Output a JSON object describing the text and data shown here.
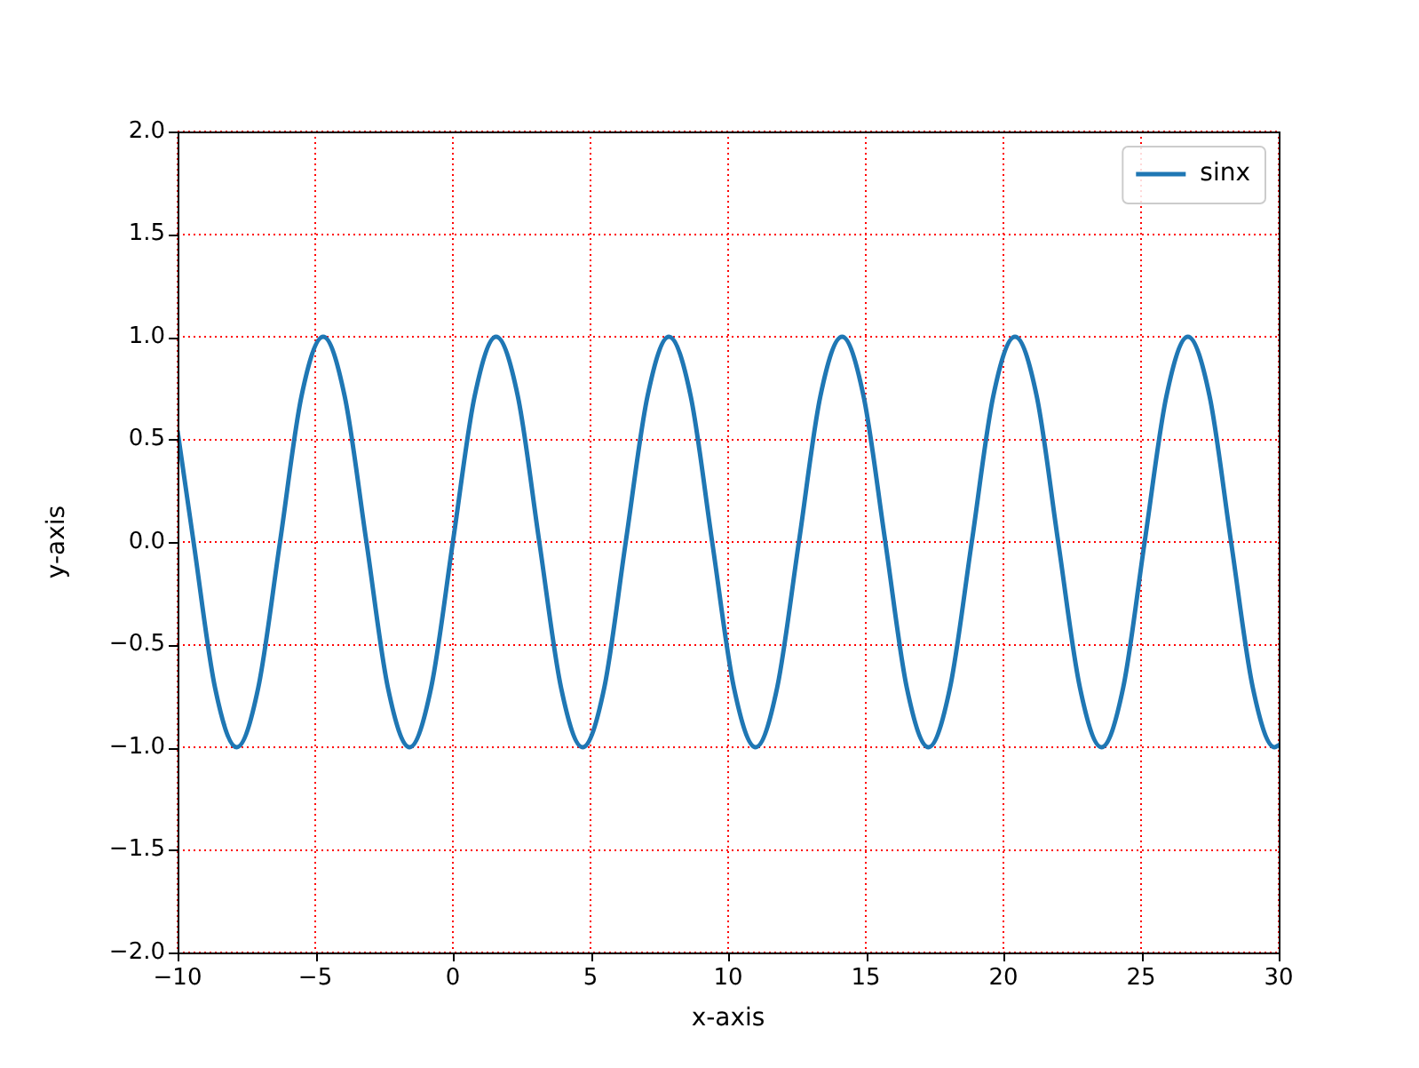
{
  "chart_data": {
    "type": "line",
    "xlabel": "x-axis",
    "ylabel": "y-axis",
    "series": [
      {
        "name": "sinx",
        "color": "#1f77b4",
        "x": [
          -10,
          -9.42,
          -8.64,
          -7.85,
          -7.07,
          -6.28,
          -5.5,
          -4.71,
          -3.93,
          -3.14,
          -2.36,
          -1.57,
          -0.79,
          0,
          0.79,
          1.57,
          2.36,
          3.14,
          3.93,
          4.71,
          5.5,
          6.28,
          7.07,
          7.85,
          8.64,
          9.42,
          10.21,
          11,
          11.78,
          12.57,
          13.35,
          14.14,
          14.92,
          15.71,
          16.49,
          17.28,
          18.06,
          18.85,
          19.63,
          20.42,
          21.21,
          21.99,
          22.78,
          23.56,
          24.35,
          25.13,
          25.92,
          26.7,
          27.49,
          28.27,
          29.06,
          29.85,
          30
        ],
        "values": [
          0.54,
          0,
          -0.71,
          -1,
          -0.71,
          0,
          0.71,
          1,
          0.71,
          0,
          -0.71,
          -1,
          -0.71,
          0,
          0.71,
          1,
          0.71,
          0,
          -0.71,
          -1,
          -0.71,
          0,
          0.71,
          1,
          0.71,
          0,
          -0.71,
          -1,
          -0.71,
          0,
          0.71,
          1,
          0.71,
          0,
          -0.71,
          -1,
          -0.71,
          0,
          0.71,
          1,
          0.71,
          0,
          -0.71,
          -1,
          -0.71,
          0,
          0.71,
          1,
          0.71,
          0,
          -0.71,
          -1,
          -0.99
        ]
      }
    ],
    "xlim": [
      -10,
      30
    ],
    "xticks": [
      {
        "value": -10,
        "label": "−10"
      },
      {
        "value": -5,
        "label": "−5"
      },
      0,
      5,
      10,
      15,
      20,
      25,
      30
    ],
    "ylim": [
      -2,
      2
    ],
    "yticks": [
      {
        "value": -2,
        "label": "−2.0"
      },
      {
        "value": -1.5,
        "label": "−1.5"
      },
      {
        "value": -1,
        "label": "−1.0"
      },
      {
        "value": -0.5,
        "label": "−0.5"
      },
      {
        "value": 0,
        "label": "0.0"
      },
      {
        "value": 0.5,
        "label": "0.5"
      },
      {
        "value": 1,
        "label": "1.0"
      },
      {
        "value": 1.5,
        "label": "1.5"
      },
      {
        "value": 2,
        "label": "2.0"
      }
    ],
    "grid": true,
    "legend": "top right",
    "marker": "none",
    "line_style": "solid"
  }
}
